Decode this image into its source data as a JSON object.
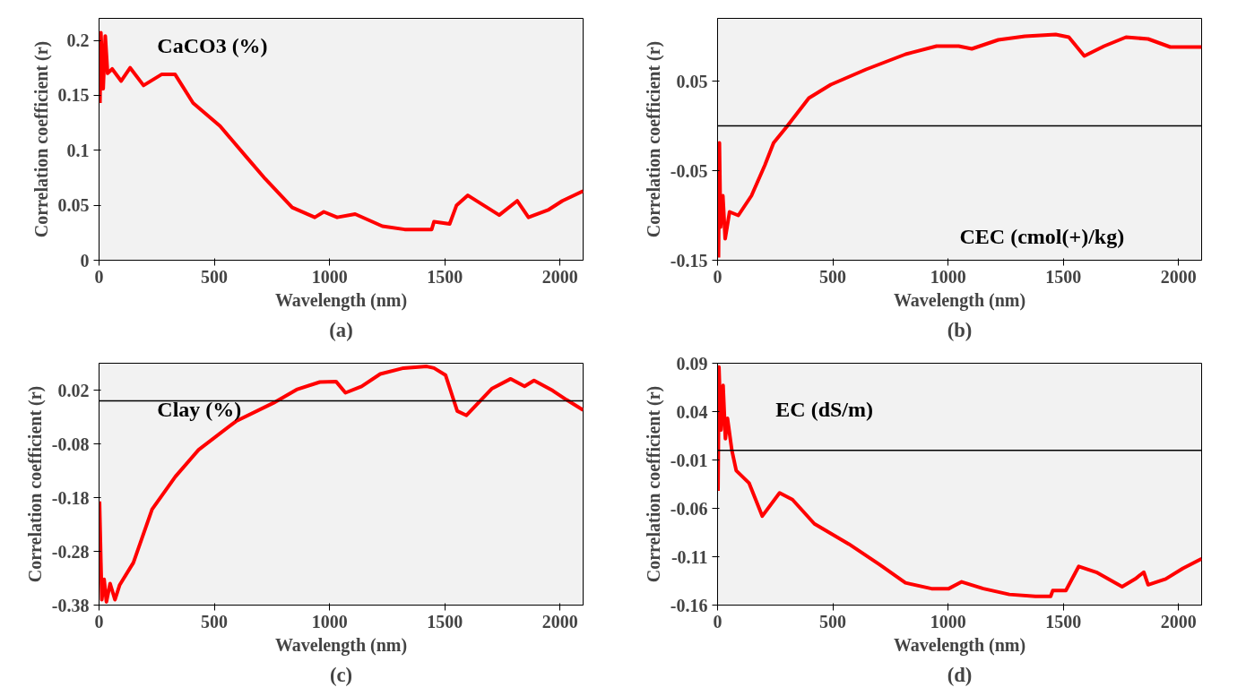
{
  "chart_data": [
    {
      "type": "line",
      "title": "(a)",
      "xlabel": "Wavelength (nm)",
      "ylabel": "Correlation coefficient (r)",
      "annotations": [
        "CaCO3 (%)"
      ],
      "xlim": [
        0,
        2100
      ],
      "xticks": [
        0,
        500,
        1000,
        1500,
        2000
      ],
      "ylim": [
        0,
        0.22
      ],
      "yticks": [
        0,
        0.05,
        0.1,
        0.15,
        0.2
      ],
      "grid": false,
      "line_style": "solid",
      "series": [
        {
          "color": "#ff0000",
          "x": [
            4,
            8,
            18,
            27,
            37,
            57,
            96,
            135,
            193,
            271,
            330,
            408,
            525,
            643,
            721,
            838,
            936,
            975,
            1033,
            1111,
            1229,
            1326,
            1443,
            1453,
            1521,
            1551,
            1600,
            1736,
            1814,
            1863,
            1951,
            2010,
            2100
          ],
          "values": [
            0.143,
            0.207,
            0.156,
            0.204,
            0.17,
            0.174,
            0.163,
            0.175,
            0.159,
            0.169,
            0.169,
            0.143,
            0.122,
            0.093,
            0.074,
            0.048,
            0.039,
            0.044,
            0.039,
            0.042,
            0.031,
            0.028,
            0.028,
            0.035,
            0.033,
            0.05,
            0.059,
            0.041,
            0.054,
            0.039,
            0.046,
            0.054,
            0.063
          ]
        }
      ]
    },
    {
      "type": "line",
      "title": "(b)",
      "xlabel": "Wavelength (nm)",
      "ylabel": "Correlation coefficient (r)",
      "annotations": [
        "CEC (cmol(+)/kg)"
      ],
      "xlim": [
        0,
        2100
      ],
      "xticks": [
        0,
        500,
        1000,
        1500,
        2000
      ],
      "ylim": [
        -0.15,
        0.12
      ],
      "yticks": [
        -0.15,
        -0.05,
        0.05
      ],
      "grid": false,
      "line_style": "solid",
      "ref_lines": [
        {
          "axis": "y",
          "value": 0,
          "color": "#000000"
        }
      ],
      "series": [
        {
          "color": "#ff0000",
          "x": [
            4,
            8,
            13,
            23,
            33,
            52,
            90,
            147,
            205,
            243,
            300,
            396,
            491,
            644,
            816,
            950,
            1046,
            1103,
            1218,
            1333,
            1467,
            1524,
            1591,
            1677,
            1772,
            1868,
            1964,
            2100
          ],
          "values": [
            -0.147,
            -0.019,
            -0.113,
            -0.078,
            -0.126,
            -0.096,
            -0.1,
            -0.078,
            -0.044,
            -0.019,
            -0.001,
            0.031,
            0.046,
            0.063,
            0.08,
            0.089,
            0.089,
            0.086,
            0.096,
            0.1,
            0.102,
            0.099,
            0.078,
            0.089,
            0.099,
            0.097,
            0.088,
            0.088
          ]
        }
      ]
    },
    {
      "type": "line",
      "title": "(c)",
      "xlabel": "Wavelength (nm)",
      "ylabel": "Correlation coefficient (r)",
      "annotations": [
        "Clay (%)"
      ],
      "xlim": [
        0,
        2100
      ],
      "xticks": [
        0,
        500,
        1000,
        1500,
        2000
      ],
      "ylim": [
        -0.38,
        0.07
      ],
      "yticks": [
        -0.38,
        -0.28,
        -0.18,
        -0.08,
        0.02
      ],
      "grid": false,
      "line_style": "solid",
      "ref_lines": [
        {
          "axis": "y",
          "value": 0,
          "color": "#000000"
        }
      ],
      "series": [
        {
          "color": "#ff0000",
          "x": [
            2,
            8,
            12,
            22,
            32,
            48,
            69,
            89,
            149,
            230,
            331,
            432,
            594,
            756,
            857,
            958,
            1028,
            1069,
            1139,
            1220,
            1321,
            1422,
            1453,
            1503,
            1554,
            1594,
            1705,
            1786,
            1846,
            1887,
            1968,
            2028,
            2100
          ],
          "values": [
            -0.187,
            -0.301,
            -0.37,
            -0.332,
            -0.374,
            -0.34,
            -0.37,
            -0.343,
            -0.301,
            -0.202,
            -0.141,
            -0.091,
            -0.038,
            -0.004,
            0.021,
            0.035,
            0.036,
            0.015,
            0.027,
            0.05,
            0.061,
            0.064,
            0.061,
            0.048,
            -0.019,
            -0.027,
            0.023,
            0.041,
            0.027,
            0.038,
            0.019,
            0.002,
            -0.017
          ]
        }
      ]
    },
    {
      "type": "line",
      "title": "(d)",
      "xlabel": "Wavelength (nm)",
      "ylabel": "Correlation coefficient (r)",
      "annotations": [
        "EC (dS/m)"
      ],
      "xlim": [
        0,
        2100
      ],
      "xticks": [
        0,
        500,
        1000,
        1500,
        2000
      ],
      "ylim": [
        -0.16,
        0.09
      ],
      "yticks": [
        -0.16,
        -0.11,
        -0.06,
        -0.01,
        0.04,
        0.09
      ],
      "grid": false,
      "line_style": "solid",
      "ref_lines": [
        {
          "axis": "y",
          "value": 0,
          "color": "#000000"
        }
      ],
      "series": [
        {
          "color": "#ff0000",
          "x": [
            2,
            6,
            15,
            24,
            34,
            43,
            62,
            81,
            137,
            194,
            269,
            325,
            420,
            570,
            702,
            815,
            928,
            1003,
            1059,
            1153,
            1266,
            1379,
            1445,
            1454,
            1511,
            1567,
            1643,
            1755,
            1812,
            1849,
            1868,
            1944,
            2019,
            2100
          ],
          "values": [
            -0.042,
            0.086,
            0.021,
            0.067,
            0.012,
            0.033,
            0.0,
            -0.021,
            -0.034,
            -0.068,
            -0.044,
            -0.051,
            -0.076,
            -0.097,
            -0.118,
            -0.137,
            -0.143,
            -0.143,
            -0.136,
            -0.143,
            -0.149,
            -0.151,
            -0.151,
            -0.145,
            -0.145,
            -0.12,
            -0.126,
            -0.141,
            -0.133,
            -0.126,
            -0.139,
            -0.133,
            -0.122,
            -0.112
          ]
        }
      ]
    }
  ]
}
